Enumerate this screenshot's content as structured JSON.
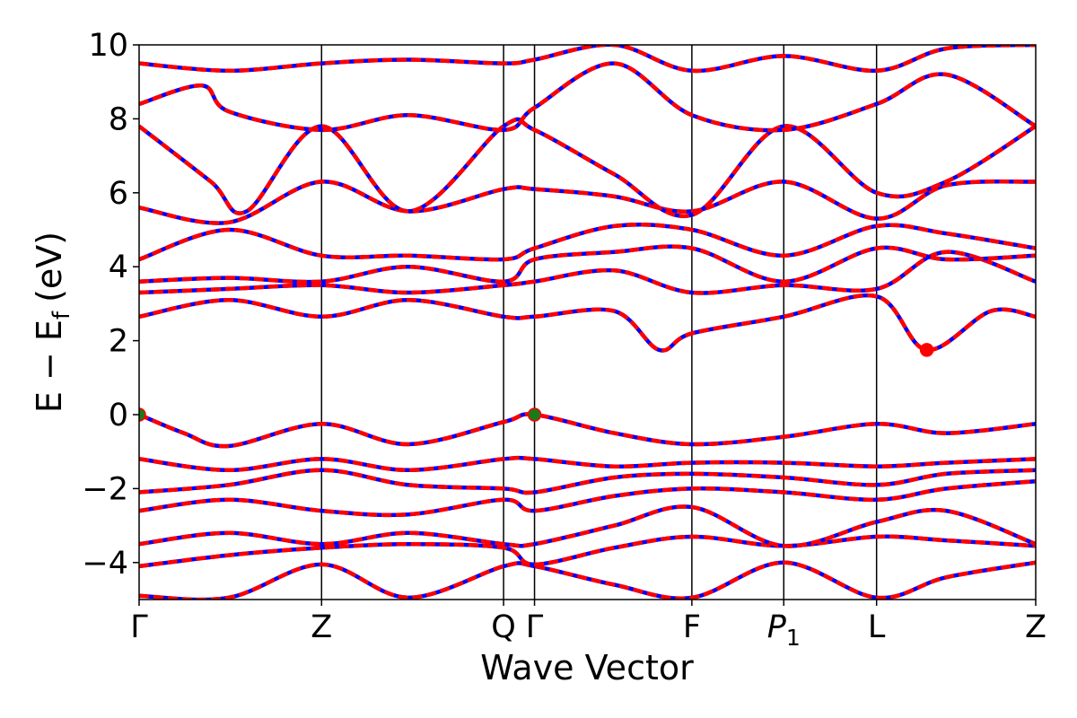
{
  "chart_data": {
    "type": "line",
    "title": "",
    "xlabel": "Wave Vector",
    "ylabel": "E − E",
    "ylabel_subscript": "f",
    "ylabel_unit": "(eV)",
    "ylim": [
      -5,
      10
    ],
    "yticks": [
      -4,
      -2,
      0,
      2,
      4,
      6,
      8,
      10
    ],
    "ytick_labels": [
      "−4",
      "−2",
      "0",
      "2",
      "4",
      "6",
      "8",
      "10"
    ],
    "xlim": [
      0,
      1
    ],
    "high_symmetry_points": [
      {
        "label": "Γ",
        "x": 0.0
      },
      {
        "label": "Z",
        "x": 0.2035
      },
      {
        "label": "Q",
        "x": 0.4065
      },
      {
        "label": "Γ",
        "x": 0.441
      },
      {
        "label": "F",
        "x": 0.6165
      },
      {
        "label": "P",
        "sub": "1",
        "italic": true,
        "x": 0.719
      },
      {
        "label": "L",
        "x": 0.8225
      },
      {
        "label": "Z",
        "x": 1.0
      }
    ],
    "series_styles": [
      {
        "color": "#0000ff",
        "dash": "none"
      },
      {
        "color": "#ff0000",
        "dash": "dashed"
      }
    ],
    "markers": [
      {
        "x": 0.0,
        "y": 0.0,
        "color": "#1a7a1a"
      },
      {
        "x": 0.441,
        "y": 0.0,
        "color": "#1a7a1a"
      },
      {
        "x": 0.8785,
        "y": 1.75,
        "color": "#ff0000"
      }
    ],
    "bands": [
      {
        "name": "",
        "points": [
          [
            0,
            -4.9
          ],
          [
            0.1,
            -4.95
          ],
          [
            0.2035,
            -4.05
          ],
          [
            0.3,
            -4.95
          ],
          [
            0.4065,
            -4.1
          ],
          [
            0.441,
            -4.1
          ],
          [
            0.53,
            -4.6
          ],
          [
            0.6165,
            -4.95
          ],
          [
            0.719,
            -4.0
          ],
          [
            0.8225,
            -4.95
          ],
          [
            0.9,
            -4.4
          ],
          [
            1,
            -4.0
          ]
        ]
      },
      {
        "name": "",
        "points": [
          [
            0,
            -4.1
          ],
          [
            0.1,
            -3.8
          ],
          [
            0.2035,
            -3.6
          ],
          [
            0.3,
            -3.5
          ],
          [
            0.4065,
            -3.6
          ],
          [
            0.441,
            -4.05
          ],
          [
            0.53,
            -3.6
          ],
          [
            0.6165,
            -3.3
          ],
          [
            0.719,
            -3.55
          ],
          [
            0.8225,
            -3.3
          ],
          [
            0.9,
            -3.4
          ],
          [
            1,
            -3.55
          ]
        ]
      },
      {
        "name": "",
        "points": [
          [
            0,
            -3.5
          ],
          [
            0.1,
            -3.2
          ],
          [
            0.2035,
            -3.5
          ],
          [
            0.3,
            -3.2
          ],
          [
            0.4065,
            -3.5
          ],
          [
            0.441,
            -3.5
          ],
          [
            0.53,
            -3.0
          ],
          [
            0.6165,
            -2.5
          ],
          [
            0.719,
            -3.55
          ],
          [
            0.8225,
            -2.9
          ],
          [
            0.9,
            -2.6
          ],
          [
            1,
            -3.5
          ]
        ]
      },
      {
        "name": "",
        "points": [
          [
            0,
            -2.6
          ],
          [
            0.1,
            -2.3
          ],
          [
            0.2035,
            -2.6
          ],
          [
            0.3,
            -2.7
          ],
          [
            0.4065,
            -2.3
          ],
          [
            0.441,
            -2.6
          ],
          [
            0.53,
            -2.2
          ],
          [
            0.6165,
            -2.0
          ],
          [
            0.719,
            -2.1
          ],
          [
            0.8225,
            -2.3
          ],
          [
            0.9,
            -2.0
          ],
          [
            1,
            -1.8
          ]
        ]
      },
      {
        "name": "",
        "points": [
          [
            0,
            -2.1
          ],
          [
            0.1,
            -1.9
          ],
          [
            0.2035,
            -1.5
          ],
          [
            0.3,
            -1.9
          ],
          [
            0.4065,
            -2.0
          ],
          [
            0.441,
            -2.1
          ],
          [
            0.53,
            -1.7
          ],
          [
            0.6165,
            -1.6
          ],
          [
            0.719,
            -1.7
          ],
          [
            0.8225,
            -1.9
          ],
          [
            0.9,
            -1.6
          ],
          [
            1,
            -1.5
          ]
        ]
      },
      {
        "name": "",
        "points": [
          [
            0,
            -1.2
          ],
          [
            0.1,
            -1.5
          ],
          [
            0.2035,
            -1.2
          ],
          [
            0.3,
            -1.5
          ],
          [
            0.4065,
            -1.2
          ],
          [
            0.441,
            -1.2
          ],
          [
            0.53,
            -1.4
          ],
          [
            0.6165,
            -1.3
          ],
          [
            0.719,
            -1.3
          ],
          [
            0.8225,
            -1.4
          ],
          [
            0.9,
            -1.3
          ],
          [
            1,
            -1.2
          ]
        ]
      },
      {
        "name": "",
        "points": [
          [
            0,
            0.0
          ],
          [
            0.05,
            -0.5
          ],
          [
            0.1,
            -0.85
          ],
          [
            0.2035,
            -0.25
          ],
          [
            0.3,
            -0.8
          ],
          [
            0.4065,
            -0.2
          ],
          [
            0.441,
            0.0
          ],
          [
            0.53,
            -0.5
          ],
          [
            0.6165,
            -0.8
          ],
          [
            0.719,
            -0.6
          ],
          [
            0.8225,
            -0.25
          ],
          [
            0.9,
            -0.5
          ],
          [
            1,
            -0.25
          ]
        ]
      },
      {
        "name": "",
        "points": [
          [
            0,
            2.65
          ],
          [
            0.1,
            3.1
          ],
          [
            0.2035,
            2.65
          ],
          [
            0.3,
            3.1
          ],
          [
            0.4065,
            2.65
          ],
          [
            0.441,
            2.65
          ],
          [
            0.53,
            2.8
          ],
          [
            0.58,
            1.75
          ],
          [
            0.6165,
            2.2
          ],
          [
            0.719,
            2.65
          ],
          [
            0.8225,
            3.2
          ],
          [
            0.8785,
            1.75
          ],
          [
            0.95,
            2.8
          ],
          [
            1,
            2.65
          ]
        ]
      },
      {
        "name": "",
        "points": [
          [
            0,
            3.3
          ],
          [
            0.1,
            3.4
          ],
          [
            0.2035,
            3.5
          ],
          [
            0.3,
            3.3
          ],
          [
            0.4065,
            3.5
          ],
          [
            0.441,
            3.6
          ],
          [
            0.53,
            3.9
          ],
          [
            0.6165,
            3.3
          ],
          [
            0.719,
            3.5
          ],
          [
            0.8225,
            3.4
          ],
          [
            0.9,
            4.4
          ],
          [
            1,
            3.6
          ]
        ]
      },
      {
        "name": "",
        "points": [
          [
            0,
            3.6
          ],
          [
            0.1,
            3.7
          ],
          [
            0.2035,
            3.6
          ],
          [
            0.3,
            4.0
          ],
          [
            0.4065,
            3.6
          ],
          [
            0.441,
            4.2
          ],
          [
            0.53,
            4.4
          ],
          [
            0.6165,
            4.5
          ],
          [
            0.719,
            3.6
          ],
          [
            0.8225,
            4.5
          ],
          [
            0.9,
            4.2
          ],
          [
            1,
            4.3
          ]
        ]
      },
      {
        "name": "",
        "points": [
          [
            0,
            4.2
          ],
          [
            0.1,
            5.0
          ],
          [
            0.2035,
            4.3
          ],
          [
            0.3,
            4.3
          ],
          [
            0.4065,
            4.2
          ],
          [
            0.441,
            4.5
          ],
          [
            0.53,
            5.1
          ],
          [
            0.6165,
            5.0
          ],
          [
            0.719,
            4.3
          ],
          [
            0.8225,
            5.1
          ],
          [
            0.9,
            4.9
          ],
          [
            1,
            4.5
          ]
        ]
      },
      {
        "name": "",
        "points": [
          [
            0,
            5.6
          ],
          [
            0.1,
            5.2
          ],
          [
            0.2035,
            6.3
          ],
          [
            0.3,
            5.5
          ],
          [
            0.4065,
            6.1
          ],
          [
            0.441,
            6.1
          ],
          [
            0.53,
            5.9
          ],
          [
            0.6165,
            5.5
          ],
          [
            0.719,
            6.3
          ],
          [
            0.8225,
            5.3
          ],
          [
            0.9,
            6.2
          ],
          [
            1,
            6.3
          ]
        ]
      },
      {
        "name": "",
        "points": [
          [
            0,
            7.8
          ],
          [
            0.08,
            6.3
          ],
          [
            0.12,
            5.5
          ],
          [
            0.2035,
            7.8
          ],
          [
            0.3,
            5.5
          ],
          [
            0.4065,
            7.8
          ],
          [
            0.441,
            7.7
          ],
          [
            0.53,
            6.5
          ],
          [
            0.6165,
            5.4
          ],
          [
            0.719,
            7.8
          ],
          [
            0.8225,
            6.0
          ],
          [
            0.9,
            6.3
          ],
          [
            1,
            7.8
          ]
        ]
      },
      {
        "name": "",
        "points": [
          [
            0,
            8.4
          ],
          [
            0.07,
            8.9
          ],
          [
            0.1,
            8.2
          ],
          [
            0.2035,
            7.7
          ],
          [
            0.3,
            8.1
          ],
          [
            0.4065,
            7.7
          ],
          [
            0.441,
            8.3
          ],
          [
            0.53,
            9.5
          ],
          [
            0.6165,
            8.1
          ],
          [
            0.719,
            7.7
          ],
          [
            0.8225,
            8.4
          ],
          [
            0.9,
            9.2
          ],
          [
            1,
            7.8
          ]
        ]
      },
      {
        "name": "",
        "points": [
          [
            0,
            9.5
          ],
          [
            0.1,
            9.3
          ],
          [
            0.2035,
            9.5
          ],
          [
            0.3,
            9.6
          ],
          [
            0.4065,
            9.5
          ],
          [
            0.441,
            9.6
          ],
          [
            0.53,
            10.0
          ],
          [
            0.6165,
            9.3
          ],
          [
            0.719,
            9.7
          ],
          [
            0.8225,
            9.3
          ],
          [
            0.9,
            9.9
          ],
          [
            1,
            10.0
          ]
        ]
      }
    ]
  }
}
